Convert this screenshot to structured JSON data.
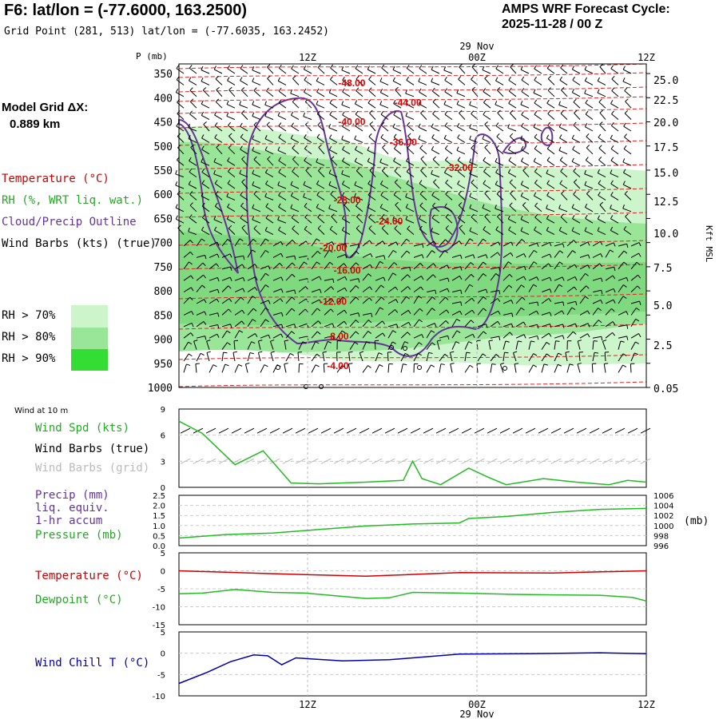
{
  "header": {
    "title": "F6:  lat/lon = (-77.6000, 163.2500)",
    "grid_point": "Grid Point (281, 513) lat/lon = (-77.6035, 163.2452)",
    "cycle_line1": "AMPS WRF Forecast Cycle:",
    "cycle_line2": "2025-11-28 / 00  Z"
  },
  "left_labels": {
    "model_grid": "Model Grid ΔX:",
    "model_grid_value": "0.889 km",
    "temperature": "Temperature (°C)",
    "rh": "RH (%, WRT liq. wat.)",
    "cloud": "Cloud/Precip Outline",
    "wind_barbs": "Wind Barbs (kts) (true)",
    "rh70": "RH > 70%",
    "rh80": "RH > 80%",
    "rh90": "RH > 90%",
    "wind_at_10m": "Wind at 10 m",
    "wind_spd": "Wind Spd (kts)",
    "wind_barbs_true": "Wind Barbs (true)",
    "wind_barbs_grid": "Wind Barbs (grid)",
    "precip1": "Precip (mm)",
    "precip2": "liq. equiv.",
    "precip3": "1-hr accum",
    "pressure": "Pressure (mb)",
    "temp2": "Temperature (°C)",
    "dewpoint": "Dewpoint (°C)",
    "windchill": "Wind Chill T (°C)"
  },
  "colors": {
    "temperature": "#cc0000",
    "rh": "#22aa22",
    "cloud": "#663399",
    "windchill": "#0000aa",
    "rh70": "#ccf5cc",
    "rh80": "#99e699",
    "rh90": "#33dd33"
  },
  "chart_data": [
    {
      "type": "cross-section",
      "name": "sounding",
      "time_ticks": [
        "12Z",
        "00Z",
        "12Z"
      ],
      "date_label": "29 Nov",
      "pressure_label": "P (mb)",
      "pressure_ticks": [
        350,
        400,
        450,
        500,
        550,
        600,
        650,
        700,
        750,
        800,
        850,
        900,
        950,
        1000
      ],
      "height_axis_label": "Kft MSL",
      "height_ticks": [
        "25.0",
        "22.5",
        "20.0",
        "17.5",
        "15.0",
        "12.5",
        "10.0",
        "7.5",
        "5.0",
        "2.5",
        "0.05"
      ],
      "temperature_contours": [
        {
          "label": "-48.00",
          "t": 0.37,
          "p": 370
        },
        {
          "label": "-44.00",
          "t": 0.49,
          "p": 410
        },
        {
          "label": "-40.00",
          "t": 0.37,
          "p": 450
        },
        {
          "label": "-36.00",
          "t": 0.48,
          "p": 492
        },
        {
          "label": "-32.00",
          "t": 0.6,
          "p": 545
        },
        {
          "label": "-28.00",
          "t": 0.36,
          "p": 612
        },
        {
          "label": "-24.00",
          "t": 0.45,
          "p": 656
        },
        {
          "label": "-20.00",
          "t": 0.33,
          "p": 711
        },
        {
          "label": "-16.00",
          "t": 0.36,
          "p": 758
        },
        {
          "label": "-12.00",
          "t": 0.33,
          "p": 822
        },
        {
          "label": "-8.00",
          "t": 0.34,
          "p": 894
        },
        {
          "label": "-4.00",
          "t": 0.34,
          "p": 955
        }
      ]
    },
    {
      "type": "line",
      "name": "wind10m",
      "ylim": [
        0,
        9
      ],
      "yticks": [
        0,
        3,
        6,
        9
      ],
      "series": [
        {
          "name": "Wind Spd (kts)",
          "x": [
            0,
            0.05,
            0.12,
            0.18,
            0.24,
            0.3,
            0.4,
            0.48,
            0.5,
            0.52,
            0.56,
            0.62,
            0.66,
            0.7,
            0.78,
            0.85,
            0.92,
            0.96,
            1.0
          ],
          "values": [
            7.6,
            6.2,
            2.6,
            4.2,
            0.5,
            0.4,
            0.6,
            0.8,
            3.0,
            1.0,
            0.3,
            2.2,
            1.2,
            0.3,
            1.0,
            0.6,
            0.3,
            0.8,
            0.6
          ]
        }
      ]
    },
    {
      "type": "line",
      "name": "precip_pressure",
      "ylim": [
        0,
        2.5
      ],
      "yticks_left": [
        "0.0",
        "0.5",
        "1.0",
        "1.5",
        "2.0",
        "2.5"
      ],
      "yticks_right": [
        "996",
        "998",
        "1000",
        "1002",
        "1004",
        "1006"
      ],
      "right_axis_label": "(mb)",
      "series": [
        {
          "name": "Pressure (mb)",
          "x": [
            0,
            0.1,
            0.2,
            0.3,
            0.4,
            0.5,
            0.6,
            0.62,
            0.7,
            0.8,
            0.9,
            1.0
          ],
          "values": [
            997.5,
            998.2,
            998.5,
            999.2,
            999.9,
            1000.3,
            1000.5,
            1001.4,
            1001.8,
            1002.6,
            1003.2,
            1003.4
          ]
        }
      ]
    },
    {
      "type": "line",
      "name": "temp_dew",
      "ylim": [
        -15,
        5
      ],
      "yticks": [
        -15,
        -10,
        -5,
        0,
        5
      ],
      "series": [
        {
          "name": "Temperature (°C)",
          "x": [
            0,
            0.2,
            0.4,
            0.6,
            0.8,
            1.0
          ],
          "values": [
            0,
            -0.8,
            -1.5,
            -0.5,
            -0.6,
            0
          ]
        },
        {
          "name": "Dewpoint (°C)",
          "x": [
            0,
            0.05,
            0.12,
            0.2,
            0.27,
            0.4,
            0.45,
            0.5,
            0.6,
            0.7,
            0.8,
            0.9,
            0.97,
            1.0
          ],
          "values": [
            -6.4,
            -6.2,
            -5.2,
            -6,
            -6.2,
            -7.7,
            -7.5,
            -6,
            -6.2,
            -6.5,
            -6.7,
            -6.8,
            -7.4,
            -8.4
          ]
        }
      ]
    },
    {
      "type": "line",
      "name": "windchill",
      "ylim": [
        -10,
        5
      ],
      "yticks": [
        -10,
        -5,
        0,
        5
      ],
      "series": [
        {
          "name": "Wind Chill T (°C)",
          "x": [
            0,
            0.06,
            0.11,
            0.16,
            0.19,
            0.22,
            0.25,
            0.35,
            0.45,
            0.5,
            0.6,
            0.75,
            0.9,
            1.0
          ],
          "values": [
            -7.1,
            -4.5,
            -2.0,
            -0.4,
            -0.6,
            -2.7,
            -1.1,
            -1.8,
            -1.5,
            -1.1,
            -0.2,
            -0.1,
            0.1,
            -0.1
          ]
        }
      ]
    }
  ]
}
